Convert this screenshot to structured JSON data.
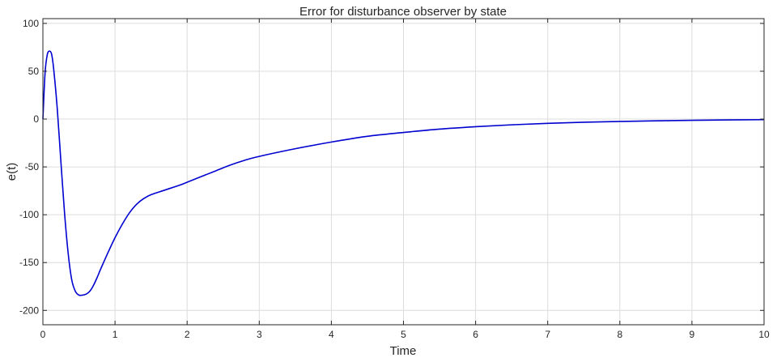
{
  "chart_data": {
    "type": "line",
    "title": "Error for disturbance observer by state",
    "xlabel": "Time",
    "ylabel": "e(t)",
    "xlim": [
      0,
      10
    ],
    "ylim": [
      -215,
      105
    ],
    "grid": true,
    "x_ticks": [
      0,
      1,
      2,
      3,
      4,
      5,
      6,
      7,
      8,
      9,
      10
    ],
    "x_tick_labels": [
      "0",
      "1",
      "2",
      "3",
      "4",
      "5",
      "6",
      "7",
      "8",
      "9",
      "10"
    ],
    "y_ticks": [
      100,
      50,
      0,
      -50,
      -100,
      -150,
      -200
    ],
    "y_tick_labels": [
      "100",
      "50",
      "0",
      "-50",
      "-100",
      "-150",
      "-200"
    ],
    "series": [
      {
        "color": "#0000d0",
        "x": [
          0,
          0.03,
          0.06,
          0.09,
          0.12,
          0.15,
          0.2,
          0.25,
          0.3,
          0.35,
          0.4,
          0.45,
          0.5,
          0.55,
          0.6,
          0.65,
          0.7,
          0.75,
          0.8,
          0.9,
          1.0,
          1.1,
          1.2,
          1.3,
          1.4,
          1.5,
          1.7,
          1.9,
          2.0,
          2.2,
          2.4,
          2.6,
          2.8,
          3.0,
          3.5,
          4.0,
          4.5,
          5.0,
          5.5,
          6.0,
          6.5,
          7.0,
          7.5,
          8.0,
          8.5,
          9.0,
          9.5,
          10.0
        ],
        "y": [
          0,
          48,
          67,
          71,
          68,
          52,
          10,
          -45,
          -98,
          -140,
          -168,
          -180,
          -184,
          -184,
          -183,
          -180,
          -174,
          -166,
          -157,
          -140,
          -124,
          -110,
          -98,
          -89,
          -83,
          -79,
          -74,
          -69,
          -66,
          -60,
          -54,
          -48,
          -43,
          -39,
          -31,
          -24,
          -18,
          -14,
          -10.5,
          -8,
          -6,
          -4.5,
          -3.3,
          -2.5,
          -1.8,
          -1.3,
          -0.9,
          -0.6
        ]
      }
    ]
  }
}
